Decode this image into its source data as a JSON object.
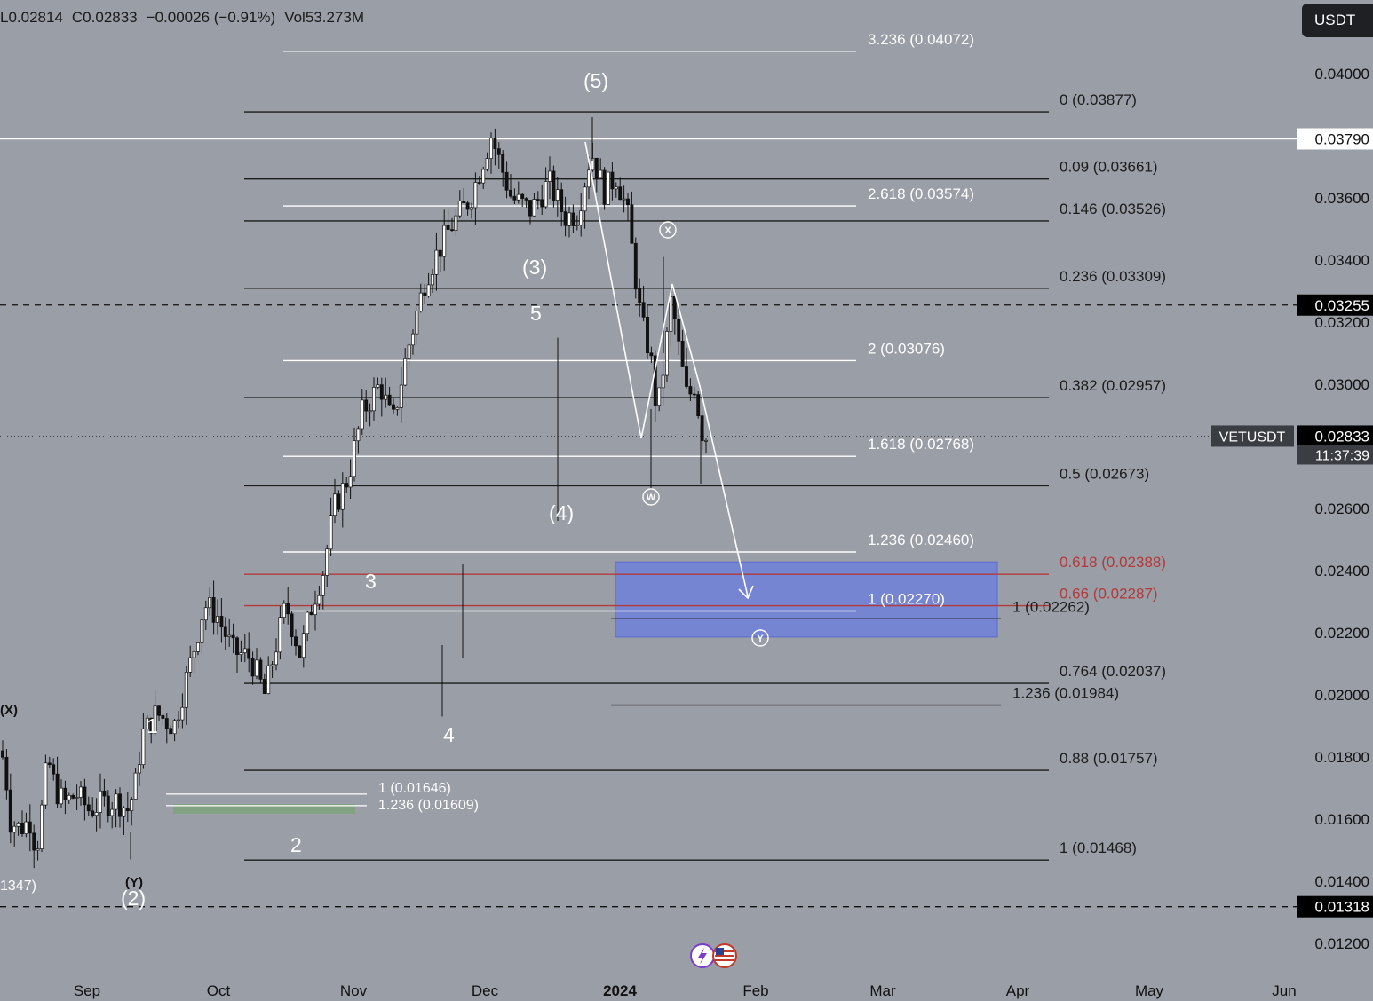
{
  "header": {
    "low": "L0.02814",
    "close": "C0.02833",
    "change": "−0.00026 (−0.91%)",
    "volume": "Vol53.273M"
  },
  "currency_button": "USDT",
  "symbol_label": "VETUSDT",
  "countdown": "11:37:39",
  "colors": {
    "background": "#9a9ea6",
    "fib_black": "#1b1b1b",
    "fib_white": "#ffffff",
    "fib_red": "#b23a3a",
    "zone": "#6f7fd6",
    "zone_fill": "#7080d8",
    "green_zone": "#7ea37a",
    "price_tag_bg": "#000000"
  },
  "chart_data": {
    "type": "line",
    "title": "",
    "xlabel": "",
    "ylabel": "",
    "ylim": [
      0.0112,
      0.0418
    ],
    "x_ticks": [
      "Sep",
      "Oct",
      "Nov",
      "Dec",
      "2024",
      "Feb",
      "Mar",
      "Apr",
      "May",
      "Jun"
    ],
    "y_ticks": [
      "0.04000",
      "0.03600",
      "0.03400",
      "0.03200",
      "0.03000",
      "0.02600",
      "0.02400",
      "0.02200",
      "0.02000",
      "0.01800",
      "0.01600",
      "0.01400",
      "0.01200"
    ],
    "y_tick_values": [
      0.04,
      0.036,
      0.034,
      0.032,
      0.03,
      0.026,
      0.024,
      0.022,
      0.02,
      0.018,
      0.016,
      0.014,
      0.012
    ],
    "price_tags": [
      {
        "label": "0.03790",
        "value": 0.0379,
        "style": "white"
      },
      {
        "label": "0.03255",
        "value": 0.03255,
        "style": "dark"
      },
      {
        "label": "0.02833",
        "value": 0.02833,
        "style": "dark-current"
      },
      {
        "label": "0.01318",
        "value": 0.01318,
        "style": "dark"
      }
    ],
    "horizontal_lines": [
      {
        "value": 0.0379,
        "style": "solid-white"
      },
      {
        "value": 0.03255,
        "style": "dashed-black"
      },
      {
        "value": 0.02833,
        "style": "dotted-dark"
      },
      {
        "value": 0.01318,
        "style": "dashed-black"
      }
    ],
    "fib_retracement": {
      "color": "black",
      "levels": [
        {
          "label": "0 (0.03877)",
          "value": 0.03877
        },
        {
          "label": "0.09 (0.03661)",
          "value": 0.03661
        },
        {
          "label": "0.146 (0.03526)",
          "value": 0.03526
        },
        {
          "label": "0.236 (0.03309)",
          "value": 0.03309
        },
        {
          "label": "0.382 (0.02957)",
          "value": 0.02957
        },
        {
          "label": "0.5 (0.02673)",
          "value": 0.02673
        },
        {
          "label": "0.618 (0.02388)",
          "value": 0.02388,
          "color": "red"
        },
        {
          "label": "0.66 (0.02287)",
          "value": 0.02287,
          "color": "red"
        },
        {
          "label": "0.764 (0.02037)",
          "value": 0.02037
        },
        {
          "label": "0.88 (0.01757)",
          "value": 0.01757
        },
        {
          "label": "1 (0.01468)",
          "value": 0.01468
        }
      ]
    },
    "fib_extension_white": {
      "levels": [
        {
          "label": "3.236 (0.04072)",
          "value": 0.04072
        },
        {
          "label": "2.618 (0.03574)",
          "value": 0.03574
        },
        {
          "label": "2 (0.03076)",
          "value": 0.03076
        },
        {
          "label": "1.618 (0.02768)",
          "value": 0.02768
        },
        {
          "label": "1.236 (0.02460)",
          "value": 0.0246
        },
        {
          "label": "1 (0.02270)",
          "value": 0.0227
        }
      ]
    },
    "fib_extension_short": {
      "levels": [
        {
          "label": "1 (0.02262)",
          "value": 0.02262
        },
        {
          "label": "1.236 (0.01984)",
          "value": 0.01984
        }
      ]
    },
    "fib_small": {
      "levels": [
        {
          "label": "1 (0.01646)",
          "value": 0.01646
        },
        {
          "label": "1.236 (0.01609)",
          "value": 0.01609
        }
      ]
    },
    "wave_labels": [
      "(X)",
      "(Y)",
      "(2)",
      "1",
      "2",
      "3",
      "4",
      "5",
      "(3)",
      "(4)",
      "(5)",
      "W",
      "X",
      "Y"
    ],
    "edge_label": "1347)",
    "target_zone": {
      "top": 0.02428,
      "bottom": 0.02186
    },
    "projection_path": [
      {
        "x": "Dec 28",
        "y": 0.0376
      },
      {
        "x": "Jan 9",
        "y": 0.0279
      },
      {
        "x": "Jan 14",
        "y": 0.0331
      },
      {
        "x": "Jan 23",
        "y": 0.0298
      },
      {
        "x": "Feb 1",
        "y": 0.0231
      }
    ],
    "candles_note": "daily VETUSDT candles from late Aug 2023 to mid Jan 2024; last close 0.02833"
  }
}
